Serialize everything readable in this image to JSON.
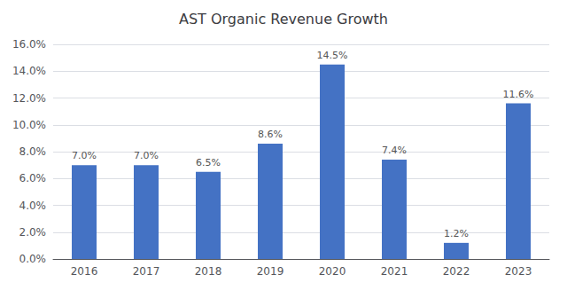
{
  "chart_data": {
    "type": "bar",
    "title": "AST Organic Revenue Growth",
    "categories": [
      "2016",
      "2017",
      "2018",
      "2019",
      "2020",
      "2021",
      "2022",
      "2023"
    ],
    "values": [
      7.0,
      7.0,
      6.5,
      8.6,
      14.5,
      7.4,
      1.2,
      11.6
    ],
    "value_labels": [
      "7.0%",
      "7.0%",
      "6.5%",
      "8.6%",
      "14.5%",
      "7.4%",
      "1.2%",
      "11.6%"
    ],
    "data_labels": true,
    "color": "#4472C4",
    "ylim": [
      0,
      16.0
    ],
    "yticks": [
      {
        "value": 0.0,
        "label": "0.0%"
      },
      {
        "value": 2.0,
        "label": "2.0%"
      },
      {
        "value": 4.0,
        "label": "4.0%"
      },
      {
        "value": 6.0,
        "label": "6.0%"
      },
      {
        "value": 8.0,
        "label": "8.0%"
      },
      {
        "value": 10.0,
        "label": "10.0%"
      },
      {
        "value": 12.0,
        "label": "12.0%"
      },
      {
        "value": 14.0,
        "label": "14.0%"
      },
      {
        "value": 16.0,
        "label": "16.0%"
      }
    ],
    "grid": true
  }
}
